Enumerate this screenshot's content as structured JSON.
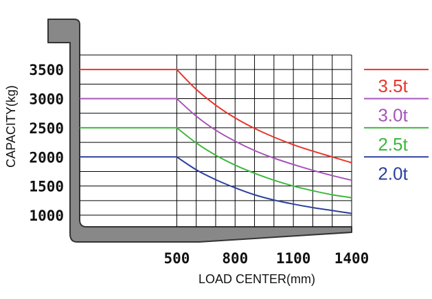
{
  "chart_data": {
    "type": "line",
    "xlabel": "LOAD CENTER(mm)",
    "ylabel": "CAPACITY(kg)",
    "xlim": [
      0,
      1400
    ],
    "ylim": [
      800,
      3750
    ],
    "x_ticks": [
      500,
      800,
      1100,
      1400
    ],
    "y_ticks": [
      1000,
      1500,
      2000,
      2500,
      3000,
      3500
    ],
    "grid": true,
    "legend_position": "right",
    "series": [
      {
        "name": "3.5t",
        "color": "#e8352a",
        "x": [
          0,
          500,
          600,
          700,
          800,
          900,
          1000,
          1100,
          1200,
          1300,
          1400
        ],
        "y": [
          3500,
          3500,
          3160,
          2890,
          2670,
          2490,
          2340,
          2210,
          2100,
          2000,
          1900
        ]
      },
      {
        "name": "3.0t",
        "color": "#a654b8",
        "x": [
          0,
          500,
          600,
          700,
          800,
          900,
          1000,
          1100,
          1200,
          1300,
          1400
        ],
        "y": [
          3000,
          3000,
          2700,
          2460,
          2270,
          2110,
          1980,
          1870,
          1770,
          1680,
          1600
        ]
      },
      {
        "name": "2.5t",
        "color": "#3cb83c",
        "x": [
          0,
          500,
          600,
          700,
          800,
          900,
          1000,
          1100,
          1200,
          1300,
          1400
        ],
        "y": [
          2500,
          2500,
          2240,
          2030,
          1860,
          1720,
          1600,
          1500,
          1420,
          1350,
          1300
        ]
      },
      {
        "name": "2.0t",
        "color": "#2c3fa0",
        "x": [
          0,
          500,
          600,
          700,
          800,
          900,
          1000,
          1100,
          1200,
          1300,
          1400
        ],
        "y": [
          2000,
          2000,
          1780,
          1610,
          1470,
          1350,
          1260,
          1190,
          1130,
          1080,
          1030
        ]
      }
    ]
  },
  "colors": {
    "fork": "#888888",
    "fork_outline": "#333333",
    "grid": "#000000"
  }
}
